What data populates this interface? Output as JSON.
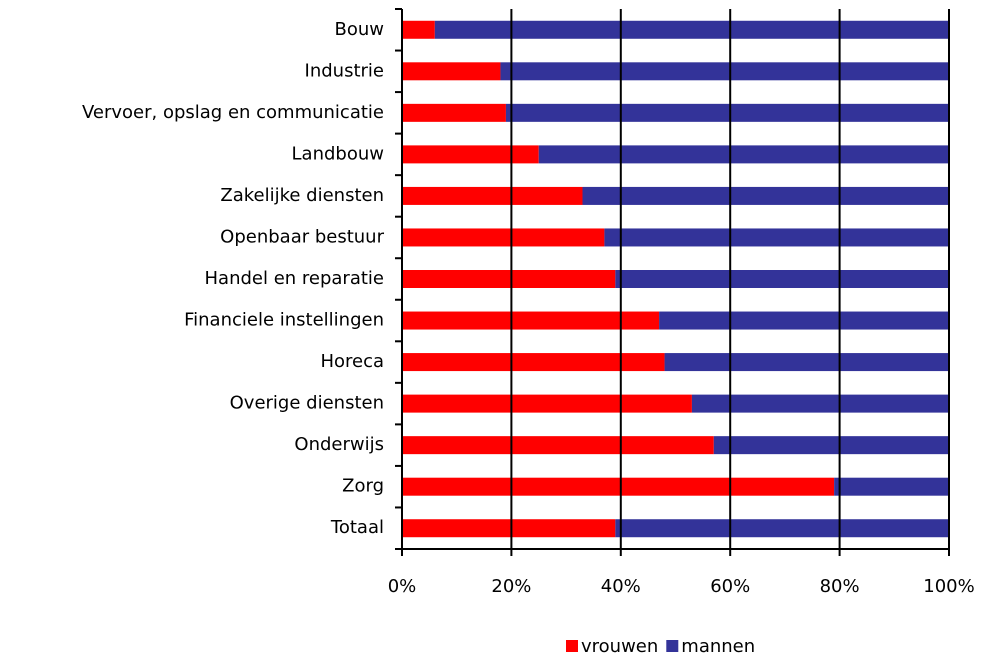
{
  "chart_data": {
    "type": "stacked-bar-horizontal",
    "categories": [
      "Bouw",
      "Industrie",
      "Vervoer, opslag en communicatie",
      "Landbouw",
      "Zakelijke diensten",
      "Openbaar bestuur",
      "Handel en reparatie",
      "Financiele instellingen",
      "Horeca",
      "Overige diensten",
      "Onderwijs",
      "Zorg",
      "Totaal"
    ],
    "series": [
      {
        "name": "vrouwen",
        "color": "#ff0000",
        "values": [
          6,
          18,
          19,
          25,
          33,
          37,
          39,
          47,
          48,
          53,
          57,
          79,
          39
        ]
      },
      {
        "name": "mannen",
        "color": "#333399",
        "values": [
          94,
          82,
          81,
          75,
          67,
          63,
          61,
          53,
          52,
          47,
          43,
          21,
          61
        ]
      }
    ],
    "xlim": [
      0,
      100
    ],
    "xticks": [
      {
        "value": 0,
        "label": "0%"
      },
      {
        "value": 20,
        "label": "20%"
      },
      {
        "value": 40,
        "label": "40%"
      },
      {
        "value": 60,
        "label": "60%"
      },
      {
        "value": 80,
        "label": "80%"
      },
      {
        "value": 100,
        "label": "100%"
      }
    ],
    "grid": true,
    "legend": "bottom"
  }
}
